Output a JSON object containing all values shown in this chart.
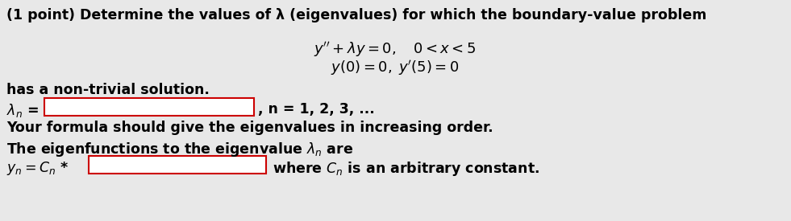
{
  "background_color": "#e8e8e8",
  "text_color": "#000000",
  "box_fill": "#ffffff",
  "box_edge_color": "#cc0000",
  "line1": "(1 point) Determine the values of λ (eigenvalues) for which the boundary-value problem",
  "eq1": "y′′ + λy = 0,  0 < x < 5",
  "eq2": "y(0) = 0, y′(5) = 0",
  "line_nontrivial": "has a non-trivial solution.",
  "n_label": ", n = 1, 2, 3, ...",
  "formula_note": "Your formula should give the eigenvalues in increasing order.",
  "eigenfunction_line": "The eigenfunctions to the eigenvalue",
  "where_label": "where",
  "arbitrary_label": "is an arbitrary constant."
}
